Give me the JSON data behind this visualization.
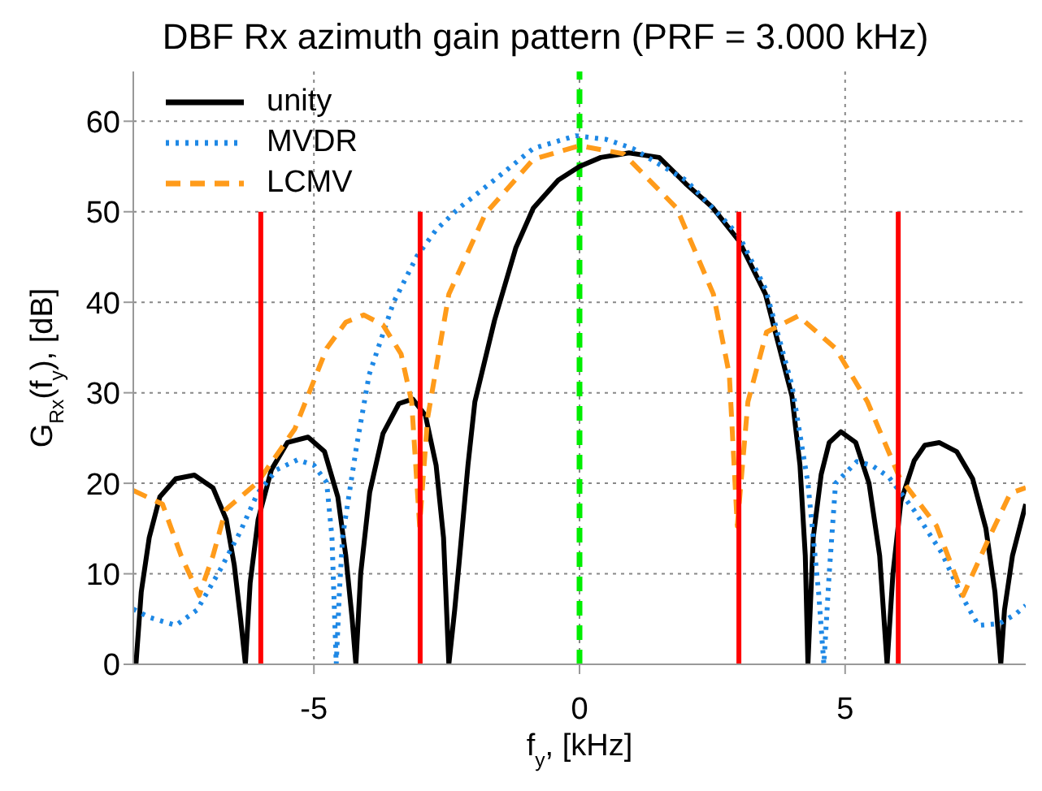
{
  "chart_data": {
    "type": "line",
    "title": "DBF Rx azimuth gain pattern (PRF = 3.000 kHz)",
    "xlabel": "f$_{y}$, [kHz]",
    "ylabel": "G$_{Rx}$(f$_{y}$), [dB]",
    "xlim": [
      -8.4,
      8.4
    ],
    "ylim": [
      0,
      65.5
    ],
    "xticks": [
      -5,
      0,
      5
    ],
    "yticks": [
      0,
      10,
      20,
      30,
      40,
      50,
      60
    ],
    "grid": true,
    "legend": "top left",
    "marker": "none",
    "ref_lines": [
      {
        "axis": "x",
        "value": 0,
        "color": "#00ee00",
        "line_style": "dashed"
      }
    ],
    "series": [
      {
        "name": "unity",
        "color": "#000000",
        "line_style": "solid",
        "x": [
          -8.35,
          -8.25,
          -8.1,
          -7.9,
          -7.6,
          -7.25,
          -6.9,
          -6.65,
          -6.5,
          -6.38,
          -6.29,
          -6.2,
          -6.05,
          -5.8,
          -5.5,
          -5.11,
          -4.8,
          -4.55,
          -4.4,
          -4.28,
          -4.21,
          -4.12,
          -3.95,
          -3.7,
          -3.4,
          -3.14,
          -2.9,
          -2.7,
          -2.56,
          -2.46,
          -2.35,
          -2.27,
          -2.1,
          -1.97,
          -1.6,
          -1.2,
          -0.87,
          -0.4,
          0,
          0.4,
          0.93,
          1.5,
          2,
          2.5,
          3,
          3.5,
          4,
          4.15,
          4.25,
          4.3,
          4.4,
          4.55,
          4.7,
          4.92,
          5.2,
          5.45,
          5.65,
          5.79,
          5.9,
          6.05,
          6.3,
          6.5,
          6.77,
          7.1,
          7.4,
          7.65,
          7.82,
          7.93,
          8.0,
          8.15,
          8.4
        ],
        "values": [
          0,
          8,
          14,
          18.5,
          20.5,
          20.9,
          19.5,
          16,
          11,
          5,
          0,
          9,
          16,
          21.5,
          24.5,
          25.1,
          23.5,
          18.5,
          12,
          5,
          0,
          10,
          19,
          25.5,
          28.8,
          29.3,
          27.5,
          22,
          14,
          0,
          6,
          11,
          22,
          29,
          38,
          46,
          50.4,
          53.5,
          55,
          56,
          56.5,
          56,
          53.1,
          50.5,
          46.8,
          40.9,
          29.6,
          22,
          12,
          0,
          14,
          21,
          24.5,
          25.7,
          24.5,
          20,
          12,
          0,
          10,
          18,
          22.5,
          24.2,
          24.5,
          23.5,
          20.5,
          15,
          8,
          0,
          6,
          12,
          17.7
        ]
      },
      {
        "name": "MVDR",
        "color": "#1e88e5",
        "line_style": "dotted",
        "x": [
          -8.4,
          -8.1,
          -7.6,
          -7.2,
          -6.76,
          -6.4,
          -6.06,
          -5.7,
          -5.31,
          -5.0,
          -4.76,
          -4.66,
          -4.58,
          -4.52,
          -4.46,
          -4.2,
          -3.96,
          -3.5,
          -3.06,
          -2.7,
          -2.27,
          -1.5,
          -0.87,
          -0.07,
          0.5,
          1,
          2,
          3,
          3.5,
          4,
          4.3,
          4.5,
          4.6,
          4.7,
          4.82,
          5.22,
          5.5,
          5.82,
          6.3,
          6.82,
          7.2,
          7.51,
          7.9,
          8.2,
          8.4
        ],
        "values": [
          6.1,
          5.2,
          4.3,
          6,
          10.5,
          14.5,
          18.9,
          21.5,
          22.6,
          22,
          20.1,
          14,
          0,
          8,
          14.1,
          24,
          32,
          40,
          45.1,
          48,
          50.4,
          54,
          57,
          58.4,
          58,
          57,
          53.5,
          47.4,
          41.5,
          30.8,
          20,
          8,
          0,
          10,
          20,
          22.4,
          22,
          20.7,
          17,
          12.3,
          7.5,
          4.3,
          4.5,
          5.5,
          6.5
        ]
      },
      {
        "name": "LCMV",
        "color": "#ff9b1a",
        "line_style": "dashed",
        "x": [
          -8.4,
          -7.85,
          -7.5,
          -7.16,
          -6.9,
          -6.66,
          -6.06,
          -5.36,
          -4.76,
          -4.4,
          -4.06,
          -3.7,
          -3.36,
          -3.16,
          -3.01,
          -2.86,
          -2.46,
          -1.77,
          -0.87,
          0,
          0.83,
          1.83,
          2.52,
          2.82,
          2.97,
          3.17,
          3.52,
          4.12,
          4.82,
          5.42,
          6.02,
          6.72,
          7.22,
          7.72,
          8.11,
          8.4
        ],
        "values": [
          19.2,
          17.7,
          12,
          7.6,
          12,
          17.1,
          20.1,
          26,
          34.9,
          37.8,
          38.6,
          37.5,
          34.3,
          29,
          15.3,
          27.2,
          40.9,
          49.8,
          55.8,
          57.3,
          56.4,
          50.4,
          40.9,
          32,
          15.3,
          29,
          36.7,
          38.5,
          34.9,
          29,
          20.7,
          15.3,
          7.6,
          14.1,
          18.9,
          19.5
        ]
      },
      {
        "color": "#ff0000",
        "line_style": "solid",
        "x": [
          -6,
          -6
        ],
        "values": [
          0,
          50
        ]
      },
      {
        "color": "#ff0000",
        "line_style": "solid",
        "x": [
          -3,
          -3
        ],
        "values": [
          0,
          50
        ]
      },
      {
        "color": "#ff0000",
        "line_style": "solid",
        "x": [
          3,
          3
        ],
        "values": [
          0,
          50
        ]
      },
      {
        "color": "#ff0000",
        "line_style": "solid",
        "x": [
          6,
          6
        ],
        "values": [
          0,
          50
        ]
      }
    ]
  }
}
